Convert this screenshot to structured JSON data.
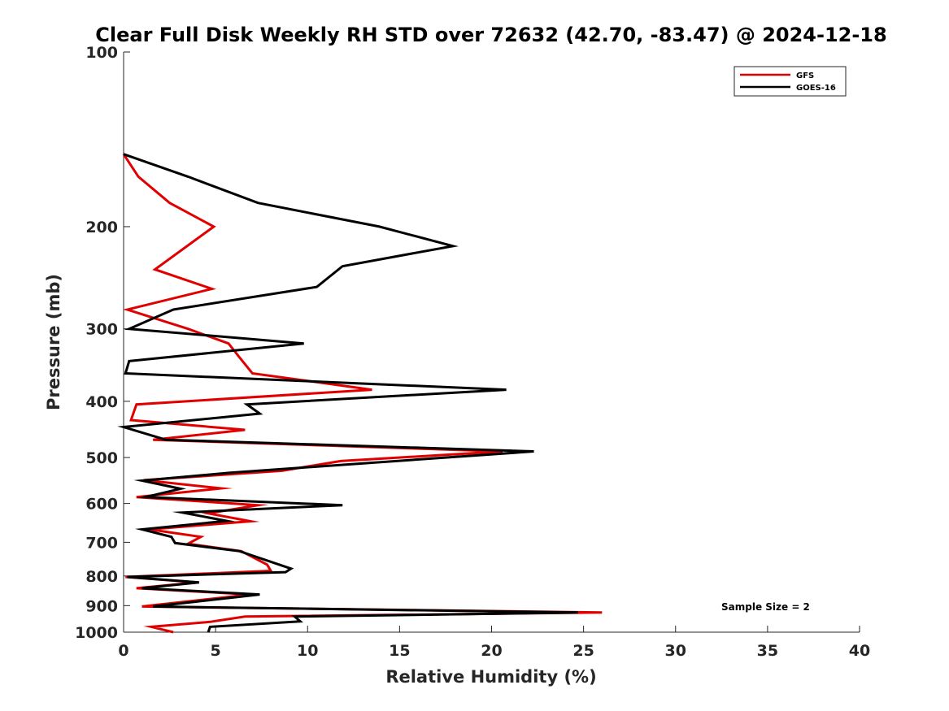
{
  "chart_data": {
    "type": "line",
    "title": "Clear Full Disk Weekly RH STD over 72632 (42.70, -83.47) @ 2024-12-18",
    "xlabel": "Relative Humidity (%)",
    "ylabel": "Pressure (mb)",
    "xlim": [
      0,
      40
    ],
    "ylim": [
      100,
      1000
    ],
    "y_scale": "log",
    "y_reversed": true,
    "x_ticks": [
      0,
      5,
      10,
      15,
      20,
      25,
      30,
      35,
      40
    ],
    "y_ticks": [
      100,
      200,
      300,
      400,
      500,
      600,
      700,
      800,
      900,
      1000
    ],
    "grid": false,
    "legend_position": "top-right",
    "annotation": "Sample Size = 2",
    "series": [
      {
        "name": "GFS",
        "color": "#e00000",
        "points": [
          [
            0.0,
            150
          ],
          [
            0.8,
            164
          ],
          [
            2.5,
            182
          ],
          [
            4.9,
            200
          ],
          [
            1.7,
            237
          ],
          [
            4.8,
            256
          ],
          [
            0.2,
            278
          ],
          [
            3.5,
            300
          ],
          [
            5.7,
            318
          ],
          [
            6.3,
            336
          ],
          [
            7.0,
            358
          ],
          [
            13.5,
            382
          ],
          [
            0.7,
            405
          ],
          [
            0.4,
            431
          ],
          [
            6.6,
            448
          ],
          [
            1.6,
            466
          ],
          [
            20.6,
            488
          ],
          [
            11.8,
            507
          ],
          [
            8.6,
            527
          ],
          [
            1.1,
            547
          ],
          [
            5.3,
            565
          ],
          [
            0.7,
            585
          ],
          [
            7.3,
            604
          ],
          [
            4.6,
            624
          ],
          [
            6.9,
            644
          ],
          [
            1.4,
            665
          ],
          [
            4.2,
            685
          ],
          [
            3.5,
            704
          ],
          [
            6.4,
            725
          ],
          [
            7.8,
            765
          ],
          [
            8.0,
            784
          ],
          [
            0.1,
            803
          ],
          [
            4.0,
            821
          ],
          [
            0.7,
            840
          ],
          [
            6.9,
            861
          ],
          [
            1.0,
            903
          ],
          [
            26.0,
            925
          ],
          [
            6.6,
            940
          ],
          [
            4.7,
            960
          ],
          [
            1.5,
            979
          ],
          [
            2.7,
            1000
          ]
        ]
      },
      {
        "name": "GOES-16",
        "color": "#000000",
        "points": [
          [
            0.0,
            150
          ],
          [
            3.5,
            164
          ],
          [
            7.3,
            182
          ],
          [
            13.9,
            200
          ],
          [
            17.9,
            216
          ],
          [
            11.9,
            234
          ],
          [
            10.5,
            254
          ],
          [
            2.7,
            278
          ],
          [
            0.3,
            300
          ],
          [
            9.8,
            318
          ],
          [
            0.3,
            341
          ],
          [
            0.1,
            358
          ],
          [
            20.8,
            382
          ],
          [
            6.7,
            405
          ],
          [
            7.4,
            420
          ],
          [
            0.0,
            443
          ],
          [
            2.3,
            466
          ],
          [
            22.3,
            488
          ],
          [
            5.8,
            531
          ],
          [
            1.0,
            548
          ],
          [
            3.1,
            566
          ],
          [
            1.2,
            585
          ],
          [
            11.9,
            604
          ],
          [
            3.2,
            622
          ],
          [
            5.6,
            643
          ],
          [
            1.0,
            665
          ],
          [
            2.6,
            685
          ],
          [
            2.8,
            702
          ],
          [
            6.3,
            725
          ],
          [
            9.1,
            777
          ],
          [
            8.8,
            788
          ],
          [
            0.2,
            803
          ],
          [
            4.1,
            821
          ],
          [
            1.0,
            840
          ],
          [
            7.4,
            861
          ],
          [
            1.6,
            903
          ],
          [
            24.7,
            925
          ],
          [
            9.3,
            940
          ],
          [
            9.6,
            958
          ],
          [
            4.7,
            979
          ],
          [
            4.6,
            1000
          ]
        ]
      }
    ]
  }
}
